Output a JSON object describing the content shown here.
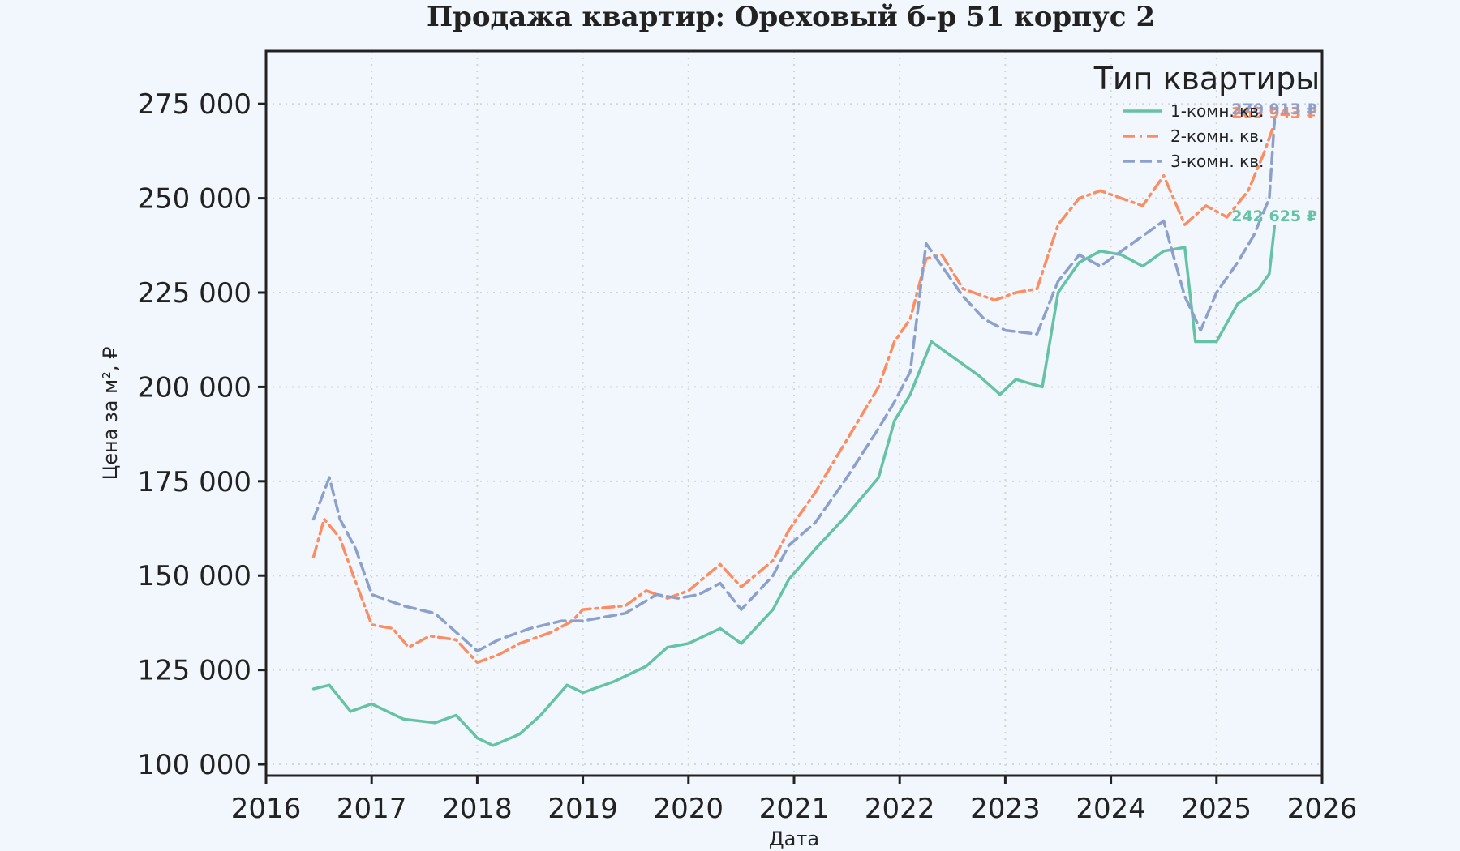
{
  "chart_data": {
    "type": "line",
    "title": "Продажа квартир: Ореховый б-р 51 корпус 2",
    "xlabel": "Дата",
    "ylabel": "Цена за м², ₽",
    "xlim": [
      2016,
      2026
    ],
    "ylim": [
      97000,
      289000
    ],
    "x_ticks": [
      2016,
      2017,
      2018,
      2019,
      2020,
      2021,
      2022,
      2023,
      2024,
      2025,
      2026
    ],
    "y_ticks": [
      100000,
      125000,
      150000,
      175000,
      200000,
      225000,
      250000,
      275000
    ],
    "y_tick_labels": [
      "100 000",
      "125 000",
      "150 000",
      "175 000",
      "200 000",
      "225 000",
      "250 000",
      "275 000"
    ],
    "grid": true,
    "legend": {
      "title": "Тип квартиры",
      "position": "top-right"
    },
    "series": [
      {
        "name": "1-комн. кв.",
        "color": "#66c2a5",
        "dash": "solid",
        "end_label": "242 625 ₽",
        "points": [
          [
            2016.45,
            120000
          ],
          [
            2016.6,
            121000
          ],
          [
            2016.8,
            114000
          ],
          [
            2017.0,
            116000
          ],
          [
            2017.3,
            112000
          ],
          [
            2017.6,
            111000
          ],
          [
            2017.8,
            113000
          ],
          [
            2018.0,
            107000
          ],
          [
            2018.15,
            105000
          ],
          [
            2018.4,
            108000
          ],
          [
            2018.6,
            113000
          ],
          [
            2018.85,
            121000
          ],
          [
            2019.0,
            119000
          ],
          [
            2019.3,
            122000
          ],
          [
            2019.6,
            126000
          ],
          [
            2019.8,
            131000
          ],
          [
            2020.0,
            132000
          ],
          [
            2020.3,
            136000
          ],
          [
            2020.5,
            132000
          ],
          [
            2020.8,
            141000
          ],
          [
            2020.95,
            149000
          ],
          [
            2021.2,
            157000
          ],
          [
            2021.5,
            166000
          ],
          [
            2021.8,
            176000
          ],
          [
            2021.95,
            191000
          ],
          [
            2022.1,
            198000
          ],
          [
            2022.3,
            212000
          ],
          [
            2022.5,
            208000
          ],
          [
            2022.75,
            203000
          ],
          [
            2022.95,
            198000
          ],
          [
            2023.1,
            202000
          ],
          [
            2023.35,
            200000
          ],
          [
            2023.5,
            225000
          ],
          [
            2023.7,
            233000
          ],
          [
            2023.9,
            236000
          ],
          [
            2024.1,
            235000
          ],
          [
            2024.3,
            232000
          ],
          [
            2024.5,
            236000
          ],
          [
            2024.7,
            237000
          ],
          [
            2024.8,
            212000
          ],
          [
            2025.0,
            212000
          ],
          [
            2025.2,
            222000
          ],
          [
            2025.4,
            226000
          ],
          [
            2025.5,
            230000
          ],
          [
            2025.55,
            242625
          ]
        ]
      },
      {
        "name": "2-комн. кв.",
        "color": "#fc8d62",
        "dash": "dashdot",
        "end_label": "269 943 ₽",
        "points": [
          [
            2016.45,
            155000
          ],
          [
            2016.55,
            165000
          ],
          [
            2016.7,
            160000
          ],
          [
            2016.8,
            152000
          ],
          [
            2017.0,
            137000
          ],
          [
            2017.2,
            136000
          ],
          [
            2017.35,
            131000
          ],
          [
            2017.55,
            134000
          ],
          [
            2017.8,
            133000
          ],
          [
            2018.0,
            127000
          ],
          [
            2018.2,
            129000
          ],
          [
            2018.4,
            132000
          ],
          [
            2018.7,
            135000
          ],
          [
            2018.9,
            138000
          ],
          [
            2019.0,
            141000
          ],
          [
            2019.4,
            142000
          ],
          [
            2019.6,
            146000
          ],
          [
            2019.8,
            144000
          ],
          [
            2020.0,
            146000
          ],
          [
            2020.3,
            153000
          ],
          [
            2020.5,
            147000
          ],
          [
            2020.8,
            154000
          ],
          [
            2020.95,
            162000
          ],
          [
            2021.2,
            172000
          ],
          [
            2021.5,
            186000
          ],
          [
            2021.8,
            200000
          ],
          [
            2021.95,
            212000
          ],
          [
            2022.1,
            218000
          ],
          [
            2022.25,
            234000
          ],
          [
            2022.4,
            235000
          ],
          [
            2022.6,
            226000
          ],
          [
            2022.9,
            223000
          ],
          [
            2023.1,
            225000
          ],
          [
            2023.3,
            226000
          ],
          [
            2023.5,
            243000
          ],
          [
            2023.7,
            250000
          ],
          [
            2023.9,
            252000
          ],
          [
            2024.1,
            250000
          ],
          [
            2024.3,
            248000
          ],
          [
            2024.5,
            256000
          ],
          [
            2024.7,
            243000
          ],
          [
            2024.9,
            248000
          ],
          [
            2025.1,
            245000
          ],
          [
            2025.3,
            252000
          ],
          [
            2025.45,
            262000
          ],
          [
            2025.55,
            269943
          ]
        ]
      },
      {
        "name": "3-комн. кв.",
        "color": "#8da0cb",
        "dash": "dashed",
        "end_label": "270 913 ₽",
        "points": [
          [
            2016.45,
            165000
          ],
          [
            2016.6,
            176000
          ],
          [
            2016.7,
            165000
          ],
          [
            2016.85,
            157000
          ],
          [
            2017.0,
            145000
          ],
          [
            2017.3,
            142000
          ],
          [
            2017.6,
            140000
          ],
          [
            2017.8,
            135000
          ],
          [
            2018.0,
            130000
          ],
          [
            2018.2,
            133000
          ],
          [
            2018.5,
            136000
          ],
          [
            2018.8,
            138000
          ],
          [
            2019.0,
            138000
          ],
          [
            2019.4,
            140000
          ],
          [
            2019.7,
            145000
          ],
          [
            2019.9,
            144000
          ],
          [
            2020.1,
            145000
          ],
          [
            2020.3,
            148000
          ],
          [
            2020.5,
            141000
          ],
          [
            2020.8,
            150000
          ],
          [
            2020.95,
            158000
          ],
          [
            2021.2,
            164000
          ],
          [
            2021.5,
            176000
          ],
          [
            2021.8,
            189000
          ],
          [
            2021.95,
            196000
          ],
          [
            2022.1,
            204000
          ],
          [
            2022.25,
            238000
          ],
          [
            2022.4,
            232000
          ],
          [
            2022.6,
            224000
          ],
          [
            2022.8,
            218000
          ],
          [
            2023.0,
            215000
          ],
          [
            2023.3,
            214000
          ],
          [
            2023.5,
            228000
          ],
          [
            2023.7,
            235000
          ],
          [
            2023.9,
            232000
          ],
          [
            2024.1,
            236000
          ],
          [
            2024.3,
            240000
          ],
          [
            2024.5,
            244000
          ],
          [
            2024.7,
            224000
          ],
          [
            2024.85,
            215000
          ],
          [
            2025.0,
            225000
          ],
          [
            2025.2,
            233000
          ],
          [
            2025.35,
            240000
          ],
          [
            2025.5,
            250000
          ],
          [
            2025.55,
            270913
          ]
        ]
      }
    ]
  }
}
